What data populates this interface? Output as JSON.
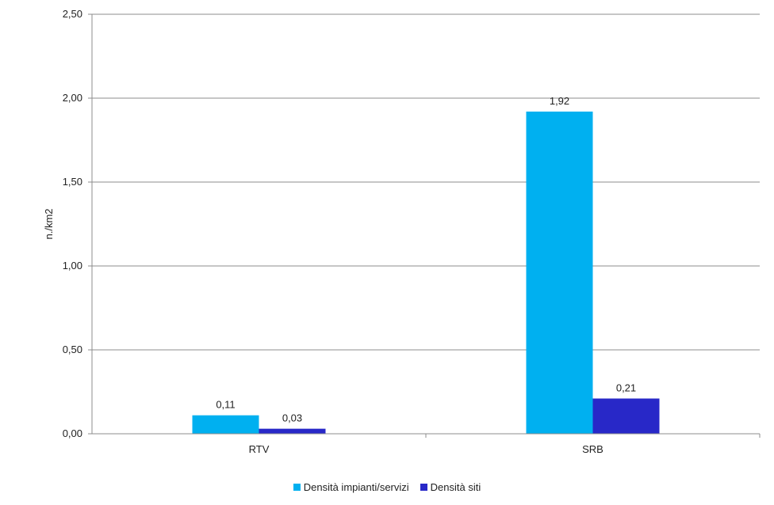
{
  "chart_data": {
    "type": "bar",
    "categories": [
      "RTV",
      "SRB"
    ],
    "series": [
      {
        "name": "Densità impianti/servizi",
        "values": [
          0.11,
          1.92
        ],
        "labels": [
          "0,11",
          "1,92"
        ],
        "color": "#00B0F0"
      },
      {
        "name": "Densità siti",
        "values": [
          0.03,
          0.21
        ],
        "labels": [
          "0,03",
          "0,21"
        ],
        "color": "#2828C8"
      }
    ],
    "ylabel": "n./km2",
    "ylim": [
      0,
      2.5
    ],
    "yticks": [
      0,
      0.5,
      1.0,
      1.5,
      2.0,
      2.5
    ],
    "ytick_labels": [
      "0,00",
      "0,50",
      "1,00",
      "1,50",
      "2,00",
      "2,50"
    ],
    "grid": true,
    "legend_position": "bottom"
  }
}
